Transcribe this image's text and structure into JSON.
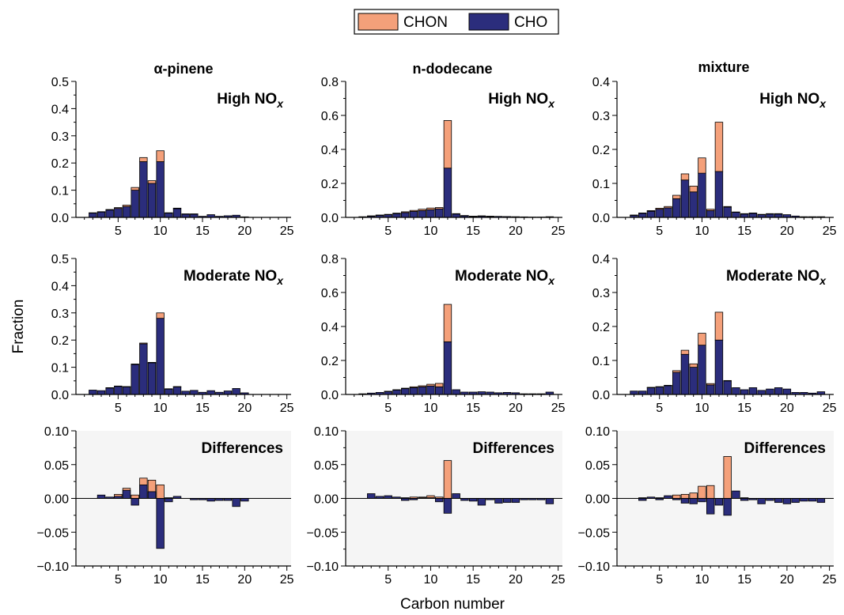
{
  "colors": {
    "chon": "#f4a07a",
    "cho": "#2b2d7c",
    "diff_bg": "#f5f5f5",
    "axis": "#000000"
  },
  "legend": {
    "items": [
      {
        "label": "CHON",
        "color": "#f4a07a"
      },
      {
        "label": "CHO",
        "color": "#2b2d7c"
      }
    ],
    "placement": "top-center"
  },
  "figure": {
    "xlabel": "Carbon number",
    "ylabel": "Fraction",
    "columns": [
      "α-pinene",
      "n-dodecane",
      "mixture"
    ],
    "row_labels": {
      "high": "High NO",
      "moderate": "Moderate NO",
      "diff": "Differences"
    },
    "row_label_subscript": "x"
  },
  "chart_data": [
    {
      "type": "bar",
      "stacked": true,
      "column": "α-pinene",
      "condition": "High NOx",
      "xlim": [
        0,
        25.5
      ],
      "ylim": [
        0,
        0.5
      ],
      "yticks": [
        0,
        0.1,
        0.2,
        0.3,
        0.4,
        0.5
      ],
      "ytick_labels": [
        "0.0",
        "0.1",
        "0.2",
        "0.3",
        "0.4",
        "0.5"
      ],
      "xticks": [
        5,
        10,
        15,
        20,
        25
      ],
      "x": [
        2,
        3,
        4,
        5,
        6,
        7,
        8,
        9,
        10,
        11,
        12,
        13,
        14,
        15,
        16,
        17,
        18,
        19,
        20
      ],
      "series": [
        {
          "name": "CHO",
          "values": [
            0.016,
            0.02,
            0.027,
            0.033,
            0.04,
            0.1,
            0.205,
            0.125,
            0.205,
            0.016,
            0.032,
            0.012,
            0.012,
            0.004,
            0.01,
            0.004,
            0.006,
            0.008,
            0.002
          ]
        },
        {
          "name": "CHON",
          "values": [
            0.001,
            0.001,
            0.002,
            0.003,
            0.005,
            0.01,
            0.015,
            0.01,
            0.04,
            0.001,
            0.002,
            0.001,
            0.001,
            0.0,
            0.0,
            0.0,
            0.0,
            0.0,
            0.0
          ]
        }
      ]
    },
    {
      "type": "bar",
      "stacked": true,
      "column": "n-dodecane",
      "condition": "High NOx",
      "xlim": [
        0,
        25.5
      ],
      "ylim": [
        0,
        0.8
      ],
      "yticks": [
        0,
        0.2,
        0.4,
        0.6,
        0.8
      ],
      "ytick_labels": [
        "0.0",
        "0.2",
        "0.4",
        "0.6",
        "0.8"
      ],
      "xticks": [
        5,
        10,
        15,
        20,
        25
      ],
      "x": [
        2,
        3,
        4,
        5,
        6,
        7,
        8,
        9,
        10,
        11,
        12,
        13,
        14,
        15,
        16,
        17,
        18,
        19,
        20,
        21,
        22,
        23,
        24
      ],
      "series": [
        {
          "name": "CHO",
          "values": [
            0.004,
            0.008,
            0.012,
            0.016,
            0.022,
            0.028,
            0.035,
            0.04,
            0.045,
            0.05,
            0.29,
            0.02,
            0.01,
            0.006,
            0.008,
            0.006,
            0.006,
            0.005,
            0.004,
            0.003,
            0.002,
            0.002,
            0.004
          ]
        },
        {
          "name": "CHON",
          "values": [
            0.0,
            0.001,
            0.002,
            0.002,
            0.003,
            0.005,
            0.006,
            0.008,
            0.01,
            0.008,
            0.28,
            0.002,
            0.001,
            0.001,
            0.001,
            0.001,
            0.0,
            0.0,
            0.0,
            0.0,
            0.0,
            0.0,
            0.0
          ]
        }
      ]
    },
    {
      "type": "bar",
      "stacked": true,
      "column": "mixture",
      "condition": "High NOx",
      "xlim": [
        0,
        25.5
      ],
      "ylim": [
        0,
        0.4
      ],
      "yticks": [
        0,
        0.1,
        0.2,
        0.3,
        0.4
      ],
      "ytick_labels": [
        "0.0",
        "0.1",
        "0.2",
        "0.3",
        "0.4"
      ],
      "xticks": [
        5,
        10,
        15,
        20,
        25
      ],
      "x": [
        2,
        3,
        4,
        5,
        6,
        7,
        8,
        9,
        10,
        11,
        12,
        13,
        14,
        15,
        16,
        17,
        18,
        19,
        20,
        21,
        22,
        23,
        24
      ],
      "series": [
        {
          "name": "CHO",
          "values": [
            0.006,
            0.012,
            0.018,
            0.024,
            0.028,
            0.055,
            0.11,
            0.075,
            0.13,
            0.02,
            0.135,
            0.03,
            0.015,
            0.01,
            0.012,
            0.008,
            0.01,
            0.01,
            0.008,
            0.004,
            0.002,
            0.002,
            0.002
          ]
        },
        {
          "name": "CHON",
          "values": [
            0.001,
            0.001,
            0.002,
            0.003,
            0.004,
            0.01,
            0.018,
            0.017,
            0.045,
            0.004,
            0.145,
            0.002,
            0.001,
            0.001,
            0.001,
            0.001,
            0.001,
            0.001,
            0.0,
            0.0,
            0.0,
            0.0,
            0.0
          ]
        }
      ]
    },
    {
      "type": "bar",
      "stacked": true,
      "column": "α-pinene",
      "condition": "Moderate NOx",
      "xlim": [
        0,
        25.5
      ],
      "ylim": [
        0,
        0.5
      ],
      "yticks": [
        0,
        0.1,
        0.2,
        0.3,
        0.4,
        0.5
      ],
      "ytick_labels": [
        "0.0",
        "0.1",
        "0.2",
        "0.3",
        "0.4",
        "0.5"
      ],
      "xticks": [
        5,
        10,
        15,
        20,
        25
      ],
      "x": [
        2,
        3,
        4,
        5,
        6,
        7,
        8,
        9,
        10,
        11,
        12,
        13,
        14,
        15,
        16,
        17,
        18,
        19,
        20
      ],
      "series": [
        {
          "name": "CHO",
          "values": [
            0.016,
            0.014,
            0.024,
            0.03,
            0.028,
            0.11,
            0.186,
            0.116,
            0.28,
            0.02,
            0.028,
            0.012,
            0.015,
            0.008,
            0.014,
            0.008,
            0.013,
            0.022,
            0.006
          ]
        },
        {
          "name": "CHON",
          "values": [
            0.0,
            0.0,
            0.001,
            0.001,
            0.001,
            0.002,
            0.003,
            0.002,
            0.02,
            0.001,
            0.001,
            0.0,
            0.0,
            0.0,
            0.0,
            0.0,
            0.0,
            0.0,
            0.0
          ]
        }
      ]
    },
    {
      "type": "bar",
      "stacked": true,
      "column": "n-dodecane",
      "condition": "Moderate NOx",
      "xlim": [
        0,
        25.5
      ],
      "ylim": [
        0,
        0.8
      ],
      "yticks": [
        0,
        0.2,
        0.4,
        0.6,
        0.8
      ],
      "ytick_labels": [
        "0.0",
        "0.2",
        "0.4",
        "0.6",
        "0.8"
      ],
      "xticks": [
        5,
        10,
        15,
        20,
        25
      ],
      "x": [
        2,
        3,
        4,
        5,
        6,
        7,
        8,
        9,
        10,
        11,
        12,
        13,
        14,
        15,
        16,
        17,
        18,
        19,
        20,
        21,
        22,
        23,
        24
      ],
      "series": [
        {
          "name": "CHO",
          "values": [
            0.004,
            0.008,
            0.012,
            0.018,
            0.026,
            0.034,
            0.04,
            0.045,
            0.05,
            0.045,
            0.31,
            0.028,
            0.014,
            0.014,
            0.016,
            0.014,
            0.01,
            0.012,
            0.01,
            0.004,
            0.004,
            0.004,
            0.014
          ]
        },
        {
          "name": "CHON",
          "values": [
            0.0,
            0.0,
            0.0,
            0.001,
            0.002,
            0.003,
            0.005,
            0.006,
            0.01,
            0.02,
            0.22,
            0.0,
            0.0,
            0.0,
            0.0,
            0.0,
            0.0,
            0.0,
            0.0,
            0.0,
            0.0,
            0.0,
            0.0
          ]
        }
      ]
    },
    {
      "type": "bar",
      "stacked": true,
      "column": "mixture",
      "condition": "Moderate NOx",
      "xlim": [
        0,
        25.5
      ],
      "ylim": [
        0,
        0.4
      ],
      "yticks": [
        0,
        0.1,
        0.2,
        0.3,
        0.4
      ],
      "ytick_labels": [
        "0.0",
        "0.1",
        "0.2",
        "0.3",
        "0.4"
      ],
      "xticks": [
        5,
        10,
        15,
        20,
        25
      ],
      "x": [
        2,
        3,
        4,
        5,
        6,
        7,
        8,
        9,
        10,
        11,
        12,
        13,
        14,
        15,
        16,
        17,
        18,
        19,
        20,
        21,
        22,
        23,
        24
      ],
      "series": [
        {
          "name": "CHO",
          "values": [
            0.01,
            0.01,
            0.02,
            0.022,
            0.026,
            0.065,
            0.118,
            0.08,
            0.145,
            0.028,
            0.16,
            0.04,
            0.02,
            0.014,
            0.02,
            0.012,
            0.016,
            0.02,
            0.016,
            0.006,
            0.006,
            0.004,
            0.008
          ]
        },
        {
          "name": "CHON",
          "values": [
            0.0,
            0.0,
            0.001,
            0.001,
            0.001,
            0.005,
            0.012,
            0.01,
            0.035,
            0.004,
            0.082,
            0.001,
            0.0,
            0.0,
            0.0,
            0.0,
            0.0,
            0.0,
            0.0,
            0.0,
            0.0,
            0.0,
            0.0
          ]
        }
      ]
    },
    {
      "type": "bar",
      "column": "α-pinene",
      "condition": "Differences",
      "xlim": [
        0,
        25.5
      ],
      "ylim": [
        -0.1,
        0.1
      ],
      "yticks": [
        -0.1,
        -0.05,
        0,
        0.05,
        0.1
      ],
      "ytick_labels": [
        "−0.10",
        "−0.05",
        "0.00",
        "0.05",
        "0.10"
      ],
      "xticks": [
        5,
        10,
        15,
        20,
        25
      ],
      "x": [
        2,
        3,
        4,
        5,
        6,
        7,
        8,
        9,
        10,
        11,
        12,
        13,
        14,
        15,
        16,
        17,
        18,
        19,
        20,
        21,
        22,
        23,
        24
      ],
      "series": [
        {
          "name": "CHO",
          "values": [
            0.0,
            0.005,
            0.002,
            0.003,
            0.012,
            -0.01,
            0.02,
            0.01,
            -0.074,
            -0.005,
            0.003,
            0.0,
            -0.002,
            -0.002,
            -0.004,
            -0.003,
            -0.003,
            -0.012,
            -0.004,
            0.0,
            0.0,
            0.0,
            0.0
          ]
        },
        {
          "name": "CHON",
          "values": [
            0.0,
            0.001,
            0.001,
            0.006,
            0.015,
            0.005,
            0.03,
            0.027,
            0.02,
            0.001,
            0.001,
            0.0,
            0.0,
            0.0,
            0.0,
            0.0,
            0.0,
            0.0,
            0.0,
            0.0,
            0.0,
            0.0,
            0.0
          ]
        }
      ]
    },
    {
      "type": "bar",
      "column": "n-dodecane",
      "condition": "Differences",
      "xlim": [
        0,
        25.5
      ],
      "ylim": [
        -0.1,
        0.1
      ],
      "yticks": [
        -0.1,
        -0.05,
        0,
        0.05,
        0.1
      ],
      "ytick_labels": [
        "−0.10",
        "−0.05",
        "0.00",
        "0.05",
        "0.10"
      ],
      "xticks": [
        5,
        10,
        15,
        20,
        25
      ],
      "x": [
        2,
        3,
        4,
        5,
        6,
        7,
        8,
        9,
        10,
        11,
        12,
        13,
        14,
        15,
        16,
        17,
        18,
        19,
        20,
        21,
        22,
        23,
        24
      ],
      "series": [
        {
          "name": "CHO",
          "values": [
            0.0,
            0.007,
            0.003,
            0.004,
            0.002,
            -0.003,
            -0.002,
            0.001,
            0.001,
            -0.005,
            -0.022,
            0.007,
            -0.003,
            -0.004,
            -0.01,
            -0.002,
            -0.007,
            -0.006,
            -0.006,
            -0.002,
            -0.002,
            -0.002,
            -0.008
          ]
        },
        {
          "name": "CHON",
          "values": [
            0.0,
            0.001,
            0.001,
            0.001,
            0.001,
            0.001,
            0.002,
            0.002,
            0.004,
            0.002,
            0.056,
            0.001,
            0.0,
            0.0,
            -0.004,
            0.0,
            0.0,
            0.0,
            0.0,
            0.0,
            0.0,
            0.0,
            0.0
          ]
        }
      ]
    },
    {
      "type": "bar",
      "column": "mixture",
      "condition": "Differences",
      "xlim": [
        0,
        25.5
      ],
      "ylim": [
        -0.1,
        0.1
      ],
      "yticks": [
        -0.1,
        -0.05,
        0,
        0.05,
        0.1
      ],
      "ytick_labels": [
        "−0.10",
        "−0.05",
        "0.00",
        "0.05",
        "0.10"
      ],
      "xticks": [
        5,
        10,
        15,
        20,
        25
      ],
      "x": [
        2,
        3,
        4,
        5,
        6,
        7,
        8,
        9,
        10,
        11,
        12,
        13,
        14,
        15,
        16,
        17,
        18,
        19,
        20,
        21,
        22,
        23,
        24
      ],
      "series": [
        {
          "name": "CHO",
          "values": [
            0.0,
            -0.003,
            0.002,
            -0.002,
            0.004,
            -0.002,
            -0.007,
            -0.008,
            -0.005,
            -0.023,
            -0.01,
            -0.025,
            0.011,
            -0.003,
            -0.002,
            -0.008,
            -0.003,
            -0.006,
            -0.008,
            -0.006,
            -0.004,
            -0.004,
            -0.006
          ]
        },
        {
          "name": "CHON",
          "values": [
            0.0,
            0.001,
            0.001,
            0.001,
            0.002,
            0.005,
            0.006,
            0.008,
            0.018,
            0.019,
            0.0,
            0.062,
            0.0,
            0.001,
            0.0,
            0.0,
            0.0,
            0.0,
            0.0,
            0.0,
            0.0,
            0.0,
            0.0
          ]
        }
      ]
    }
  ]
}
